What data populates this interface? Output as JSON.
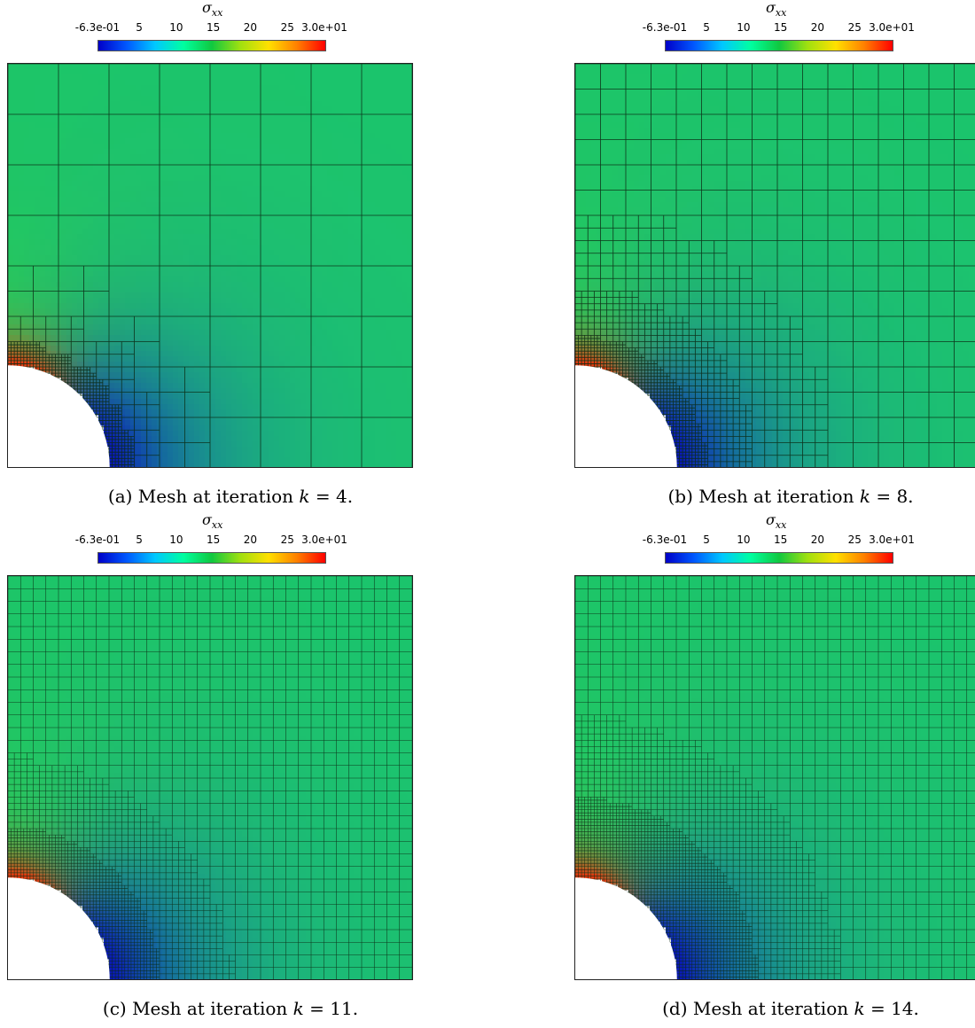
{
  "colorbar": {
    "title_symbol": "σ",
    "title_subscript": "xx",
    "tick_labels": [
      "-6.3e-01",
      "5",
      "10",
      "15",
      "20",
      "25",
      "3.0e+01"
    ],
    "min": -0.63,
    "max": 30,
    "ticks": [
      -0.63,
      5,
      10,
      15,
      20,
      25,
      30
    ],
    "colors": [
      "#0000c8",
      "#0058ff",
      "#00c8ff",
      "#00ffa0",
      "#10c840",
      "#a0e010",
      "#ffe000",
      "#ff8000",
      "#ff0000"
    ]
  },
  "panels": [
    {
      "id": "a",
      "caption_prefix": "(a) Mesh at iteration ",
      "caption_var": "k",
      "caption_eq": " = 4.",
      "iteration": 4,
      "refinement": 0
    },
    {
      "id": "b",
      "caption_prefix": "(b) Mesh at iteration ",
      "caption_var": "k",
      "caption_eq": " = 8.",
      "iteration": 8,
      "refinement": 1
    },
    {
      "id": "c",
      "caption_prefix": "(c) Mesh at iteration ",
      "caption_var": "k",
      "caption_eq": " = 11.",
      "iteration": 11,
      "refinement": 2
    },
    {
      "id": "d",
      "caption_prefix": "(d) Mesh at iteration ",
      "caption_var": "k",
      "caption_eq": " = 14.",
      "iteration": 14,
      "refinement": 3
    }
  ],
  "field_colors": {
    "far": "#1bc56a",
    "mid": "#22b890",
    "near_hole_bottom": "#0a1ab8",
    "near_hole_top": "#e03a10",
    "band_green": "#3ac84a"
  }
}
